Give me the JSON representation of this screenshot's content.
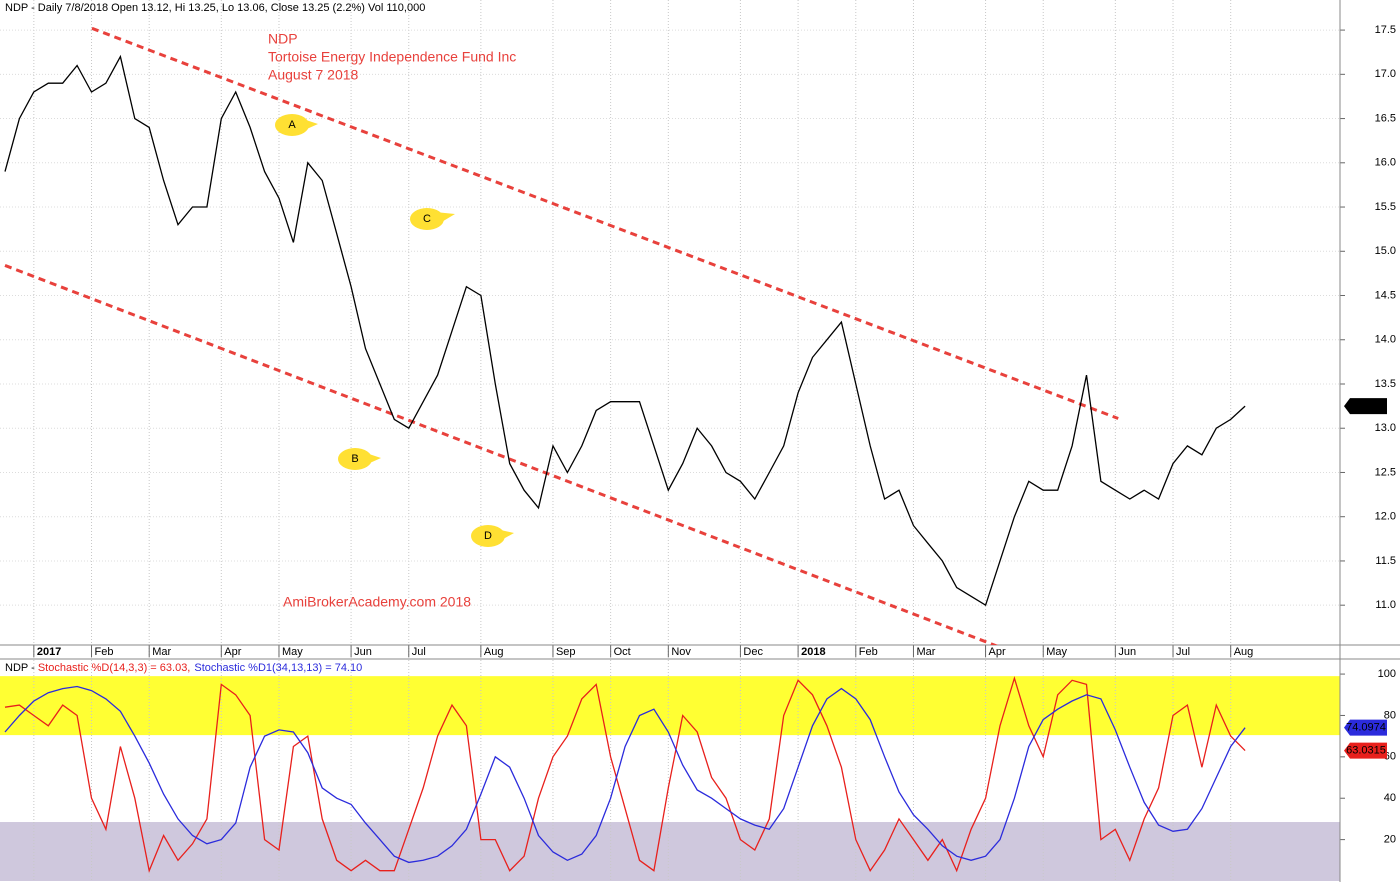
{
  "chart_data": [
    {
      "type": "line",
      "header": "NDP - Daily 7/8/2018 Open 13.12, Hi 13.25, Lo 13.06, Close 13.25 (2.2%) Vol 110,000",
      "title": "NDP",
      "subtitle": "Tortoise Energy Independence Fund Inc",
      "date_label": "August 7 2018",
      "watermark": "AmiBrokerAcademy.com  2018",
      "annotations": [
        "A",
        "B",
        "C",
        "D"
      ],
      "categories": [
        null,
        null,
        "2017",
        null,
        null,
        null,
        "Feb",
        null,
        null,
        null,
        "Mar",
        null,
        null,
        null,
        null,
        "Apr",
        null,
        null,
        null,
        "May",
        null,
        null,
        null,
        null,
        "Jun",
        null,
        null,
        null,
        "Jul",
        null,
        null,
        null,
        null,
        "Aug",
        null,
        null,
        null,
        null,
        "Sep",
        null,
        null,
        null,
        "Oct",
        null,
        null,
        null,
        "Nov",
        null,
        null,
        null,
        null,
        "Dec",
        null,
        null,
        null,
        "2018",
        null,
        null,
        null,
        "Feb",
        null,
        null,
        null,
        "Mar",
        null,
        null,
        null,
        null,
        "Apr",
        null,
        null,
        null,
        "May",
        null,
        null,
        null,
        null,
        "Jun",
        null,
        null,
        null,
        "Jul",
        null,
        null,
        null,
        "Aug",
        null
      ],
      "values": [
        15.9,
        16.5,
        16.8,
        16.9,
        16.9,
        17.1,
        16.8,
        16.9,
        17.2,
        16.5,
        16.4,
        15.8,
        15.3,
        15.5,
        15.5,
        16.5,
        16.8,
        16.4,
        15.9,
        15.6,
        15.1,
        16.0,
        15.8,
        15.2,
        14.6,
        13.9,
        13.5,
        13.1,
        13.0,
        13.3,
        13.6,
        14.1,
        14.6,
        14.5,
        13.5,
        12.6,
        12.3,
        12.1,
        12.8,
        12.5,
        12.8,
        13.2,
        13.3,
        13.3,
        13.3,
        12.8,
        12.3,
        12.6,
        13.0,
        12.8,
        12.5,
        12.4,
        12.2,
        12.5,
        12.8,
        13.4,
        13.8,
        14.0,
        14.2,
        13.5,
        12.8,
        12.2,
        12.3,
        11.9,
        11.7,
        11.5,
        11.2,
        11.1,
        11.0,
        11.5,
        12.0,
        12.4,
        12.3,
        12.3,
        12.8,
        13.6,
        12.4,
        12.3,
        12.2,
        12.3,
        12.2,
        12.6,
        12.8,
        12.7,
        13.0,
        13.1,
        13.25
      ],
      "color": "#000000",
      "ylim": [
        10.55,
        17.84
      ],
      "yticks": [
        {
          "value": 11,
          "label": "11.0"
        },
        11.5,
        {
          "value": 12,
          "label": "12.0"
        },
        12.5,
        {
          "value": 13,
          "label": "13.0"
        },
        13.5,
        {
          "value": 14,
          "label": "14.0"
        },
        14.5,
        {
          "value": 15,
          "label": "15.0"
        },
        15.5,
        {
          "value": 16,
          "label": "16.0"
        },
        16.5,
        {
          "value": 17,
          "label": "17.0"
        },
        17.5
      ],
      "grid": true,
      "trendlines": [
        {
          "x": [
            6.03,
            77.2
          ],
          "y": [
            17.52,
            13.11
          ],
          "color": "#e8413c"
        },
        {
          "x": [
            0,
            71
          ],
          "y": [
            14.84,
            10.4
          ],
          "color": "#e8413c"
        }
      ]
    },
    {
      "type": "line",
      "header": "NDP - ",
      "series": [
        {
          "name": "Stochastic %D(14,3,3) = 63.03,",
          "color": "#e8201c",
          "values": [
            84,
            85,
            80,
            75,
            85,
            80,
            40,
            25,
            65,
            40,
            5,
            22,
            10,
            18,
            30,
            95,
            90,
            80,
            20,
            15,
            65,
            70,
            30,
            10,
            5,
            10,
            5,
            5,
            25,
            45,
            70,
            85,
            75,
            20,
            20,
            5,
            12,
            40,
            60,
            70,
            88,
            95,
            60,
            35,
            10,
            5,
            45,
            80,
            72,
            50,
            40,
            20,
            15,
            30,
            80,
            97,
            90,
            75,
            55,
            20,
            5,
            15,
            30,
            20,
            10,
            20,
            5,
            25,
            40,
            75,
            98,
            75,
            60,
            90,
            97,
            95,
            20,
            25,
            10,
            30,
            45,
            80,
            85,
            55,
            85,
            70,
            63.0315
          ]
        },
        {
          "name": "Stochastic %D1(34,13,13) = 74.10",
          "color": "#2b2bdc",
          "values": [
            72,
            80,
            87,
            91,
            93,
            94,
            92,
            88,
            82,
            70,
            57,
            42,
            30,
            22,
            18,
            20,
            28,
            55,
            70,
            73,
            72,
            62,
            45,
            40,
            37,
            28,
            20,
            12,
            9,
            10,
            12,
            17,
            25,
            42,
            60,
            55,
            40,
            22,
            14,
            10,
            13,
            22,
            40,
            65,
            80,
            83,
            72,
            56,
            44,
            40,
            35,
            30,
            27,
            25,
            35,
            55,
            75,
            88,
            93,
            88,
            78,
            60,
            43,
            32,
            25,
            17,
            12,
            10,
            12,
            20,
            40,
            65,
            78,
            83,
            87,
            90,
            88,
            73,
            55,
            38,
            27,
            24,
            25,
            35,
            50,
            65,
            74.0974
          ]
        }
      ],
      "ylim": [
        0,
        106.8
      ],
      "yticks": [
        20,
        40,
        60,
        80,
        100
      ],
      "grid": false,
      "bands": [
        {
          "from": 70.5,
          "to": 99,
          "color": "#ffff33"
        },
        {
          "from": 0,
          "to": 28.5,
          "color": "#cfc8dd"
        }
      ]
    }
  ]
}
